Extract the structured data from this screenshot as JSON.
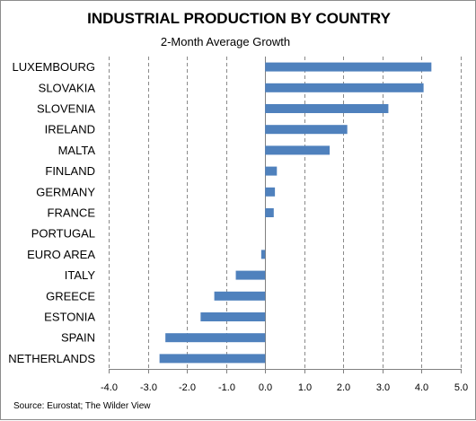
{
  "chart_data": {
    "type": "bar",
    "orientation": "horizontal",
    "title": "INDUSTRIAL PRODUCTION BY COUNTRY",
    "subtitle": "2-Month Average Growth",
    "source": "Source: Eurostat; The Wilder View",
    "categories": [
      "LUXEMBOURG",
      "SLOVAKIA",
      "SLOVENIA",
      "IRELAND",
      "MALTA",
      "FINLAND",
      "GERMANY",
      "FRANCE",
      "PORTUGAL",
      "EURO AREA",
      "ITALY",
      "GREECE",
      "ESTONIA",
      "SPAIN",
      "NETHERLANDS"
    ],
    "values": [
      4.25,
      4.05,
      3.15,
      2.1,
      1.65,
      0.3,
      0.25,
      0.22,
      0.0,
      -0.1,
      -0.75,
      -1.3,
      -1.65,
      -2.55,
      -2.7
    ],
    "xlim": [
      -4.0,
      5.0
    ],
    "x_ticks": [
      "-4.0",
      "-3.0",
      "-2.0",
      "-1.0",
      "0.0",
      "1.0",
      "2.0",
      "3.0",
      "4.0",
      "5.0"
    ],
    "bar_color": "#4f81bd",
    "gridlines": "vertical dashed",
    "legend": "none"
  }
}
